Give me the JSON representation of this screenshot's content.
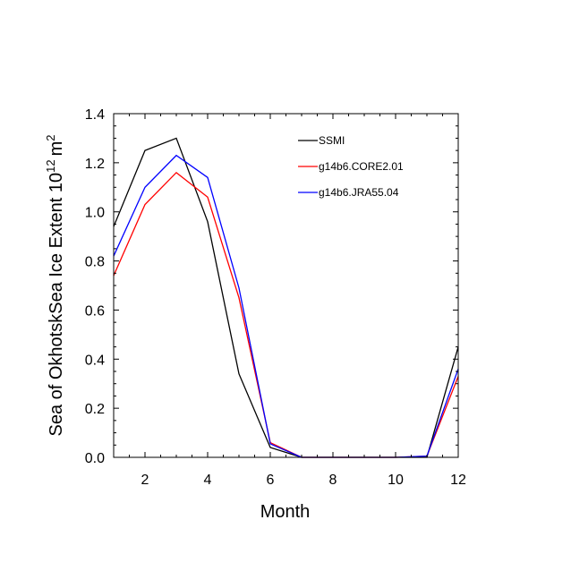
{
  "chart_data": {
    "type": "line",
    "title": "",
    "xlabel": "Month",
    "ylabel": "Sea of OkhotskSea Ice Extent 10",
    "ylabel_exponent": "12",
    "ylabel_unit": "m",
    "ylabel_unit_exponent": "2",
    "xlim": [
      1,
      12
    ],
    "ylim": [
      0,
      1.4
    ],
    "x_ticks": [
      2,
      4,
      6,
      8,
      10,
      12
    ],
    "x_tick_labels": [
      "2",
      "4",
      "6",
      "8",
      "10",
      "12"
    ],
    "y_ticks": [
      0,
      0.2,
      0.4,
      0.6,
      0.8,
      1.0,
      1.2,
      1.4
    ],
    "y_tick_labels": [
      "0.0",
      "0.2",
      "0.4",
      "0.6",
      "0.8",
      "1.0",
      "1.2",
      "1.4"
    ],
    "grid": false,
    "legend_position": "top-right",
    "x": [
      1,
      2,
      3,
      4,
      5,
      6,
      7,
      8,
      9,
      10,
      11,
      12
    ],
    "series": [
      {
        "name": "SSMI",
        "color": "#000000",
        "values": [
          0.94,
          1.25,
          1.3,
          0.96,
          0.34,
          0.04,
          0.0,
          0.0,
          0.0,
          0.0,
          0.0,
          0.45
        ]
      },
      {
        "name": "g14b6.CORE2.01",
        "color": "#ff0000",
        "values": [
          0.74,
          1.03,
          1.16,
          1.06,
          0.65,
          0.06,
          0.0,
          0.0,
          0.0,
          0.0,
          0.005,
          0.33
        ]
      },
      {
        "name": "g14b6.JRA55.04",
        "color": "#0000ff",
        "values": [
          0.82,
          1.1,
          1.23,
          1.14,
          0.69,
          0.055,
          0.0,
          0.0,
          0.0,
          0.0,
          0.005,
          0.36
        ]
      }
    ]
  }
}
